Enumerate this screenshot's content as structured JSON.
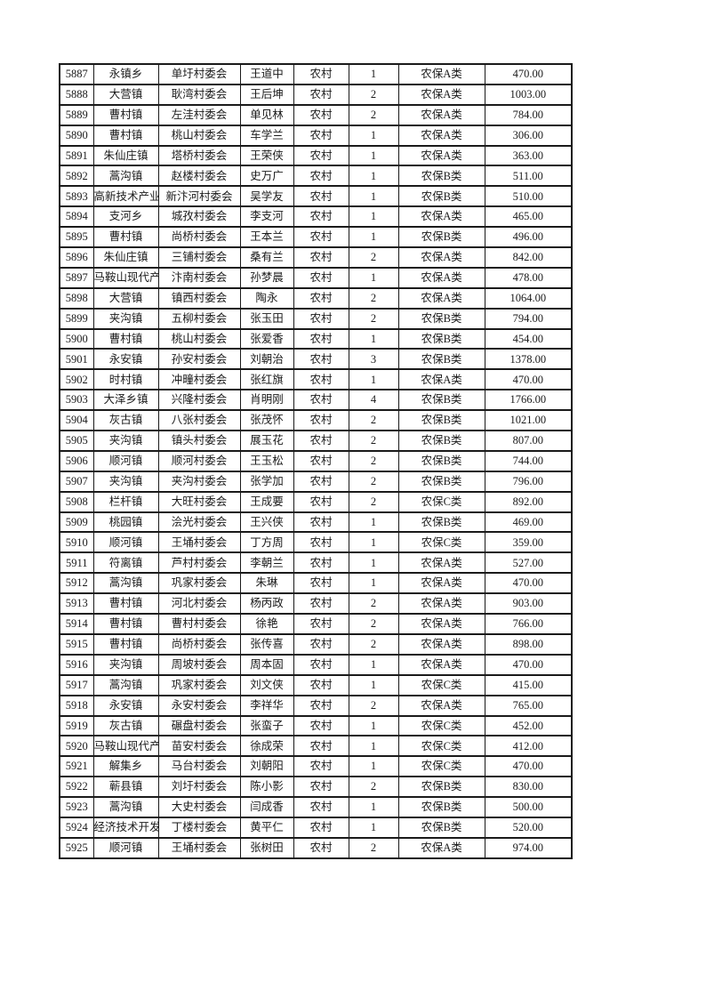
{
  "page": {
    "background_color": "#ffffff",
    "text_color": "#1a1a1a",
    "border_color": "#1a1a1a"
  },
  "table": {
    "column_names": [
      "serial-no",
      "town",
      "village-committee",
      "person-name",
      "residence-type",
      "person-count",
      "insurance-category",
      "amount"
    ],
    "rows": [
      [
        "5887",
        "永镇乡",
        "单圩村委会",
        "王道中",
        "农村",
        "1",
        "农保A类",
        "470.00"
      ],
      [
        "5888",
        "大营镇",
        "耿湾村委会",
        "王后坤",
        "农村",
        "2",
        "农保A类",
        "1003.00"
      ],
      [
        "5889",
        "曹村镇",
        "左洼村委会",
        "单见林",
        "农村",
        "2",
        "农保A类",
        "784.00"
      ],
      [
        "5890",
        "曹村镇",
        "桃山村委会",
        "车学兰",
        "农村",
        "1",
        "农保A类",
        "306.00"
      ],
      [
        "5891",
        "朱仙庄镇",
        "塔桥村委会",
        "王荣侠",
        "农村",
        "1",
        "农保A类",
        "363.00"
      ],
      [
        "5892",
        "蒿沟镇",
        "赵楼村委会",
        "史万广",
        "农村",
        "1",
        "农保B类",
        "511.00"
      ],
      [
        "5893",
        "高新技术产业开发区",
        "新汴河村委会",
        "吴学友",
        "农村",
        "1",
        "农保B类",
        "510.00"
      ],
      [
        "5894",
        "支河乡",
        "城孜村委会",
        "李支河",
        "农村",
        "1",
        "农保A类",
        "465.00"
      ],
      [
        "5895",
        "曹村镇",
        "尚桥村委会",
        "王本兰",
        "农村",
        "1",
        "农保B类",
        "496.00"
      ],
      [
        "5896",
        "朱仙庄镇",
        "三铺村委会",
        "桑有兰",
        "农村",
        "2",
        "农保A类",
        "842.00"
      ],
      [
        "5897",
        "马鞍山现代产业园区",
        "汴南村委会",
        "孙梦晨",
        "农村",
        "1",
        "农保A类",
        "478.00"
      ],
      [
        "5898",
        "大营镇",
        "镇西村委会",
        "陶永",
        "农村",
        "2",
        "农保A类",
        "1064.00"
      ],
      [
        "5899",
        "夹沟镇",
        "五柳村委会",
        "张玉田",
        "农村",
        "2",
        "农保B类",
        "794.00"
      ],
      [
        "5900",
        "曹村镇",
        "桃山村委会",
        "张爱香",
        "农村",
        "1",
        "农保B类",
        "454.00"
      ],
      [
        "5901",
        "永安镇",
        "孙安村委会",
        "刘朝治",
        "农村",
        "3",
        "农保B类",
        "1378.00"
      ],
      [
        "5902",
        "时村镇",
        "冲疃村委会",
        "张红旗",
        "农村",
        "1",
        "农保A类",
        "470.00"
      ],
      [
        "5903",
        "大泽乡镇",
        "兴隆村委会",
        "肖明刚",
        "农村",
        "4",
        "农保B类",
        "1766.00"
      ],
      [
        "5904",
        "灰古镇",
        "八张村委会",
        "张茂怀",
        "农村",
        "2",
        "农保B类",
        "1021.00"
      ],
      [
        "5905",
        "夹沟镇",
        "镇头村委会",
        "展玉花",
        "农村",
        "2",
        "农保B类",
        "807.00"
      ],
      [
        "5906",
        "顺河镇",
        "顺河村委会",
        "王玉松",
        "农村",
        "2",
        "农保B类",
        "744.00"
      ],
      [
        "5907",
        "夹沟镇",
        "夹沟村委会",
        "张学加",
        "农村",
        "2",
        "农保B类",
        "796.00"
      ],
      [
        "5908",
        "栏杆镇",
        "大旺村委会",
        "王成要",
        "农村",
        "2",
        "农保C类",
        "892.00"
      ],
      [
        "5909",
        "桃园镇",
        "浍光村委会",
        "王兴侠",
        "农村",
        "1",
        "农保B类",
        "469.00"
      ],
      [
        "5910",
        "顺河镇",
        "王埇村委会",
        "丁方周",
        "农村",
        "1",
        "农保C类",
        "359.00"
      ],
      [
        "5911",
        "符离镇",
        "芦村村委会",
        "李朝兰",
        "农村",
        "1",
        "农保A类",
        "527.00"
      ],
      [
        "5912",
        "蒿沟镇",
        "巩家村委会",
        "朱琳",
        "农村",
        "1",
        "农保A类",
        "470.00"
      ],
      [
        "5913",
        "曹村镇",
        "河北村委会",
        "杨丙政",
        "农村",
        "2",
        "农保A类",
        "903.00"
      ],
      [
        "5914",
        "曹村镇",
        "曹村村委会",
        "徐艳",
        "农村",
        "2",
        "农保A类",
        "766.00"
      ],
      [
        "5915",
        "曹村镇",
        "尚桥村委会",
        "张传喜",
        "农村",
        "2",
        "农保A类",
        "898.00"
      ],
      [
        "5916",
        "夹沟镇",
        "周坡村委会",
        "周本固",
        "农村",
        "1",
        "农保A类",
        "470.00"
      ],
      [
        "5917",
        "蒿沟镇",
        "巩家村委会",
        "刘文侠",
        "农村",
        "1",
        "农保C类",
        "415.00"
      ],
      [
        "5918",
        "永安镇",
        "永安村委会",
        "李祥华",
        "农村",
        "2",
        "农保A类",
        "765.00"
      ],
      [
        "5919",
        "灰古镇",
        "碾盘村委会",
        "张蛮子",
        "农村",
        "1",
        "农保C类",
        "452.00"
      ],
      [
        "5920",
        "马鞍山现代产业园区",
        "苗安村委会",
        "徐成荣",
        "农村",
        "1",
        "农保C类",
        "412.00"
      ],
      [
        "5921",
        "解集乡",
        "马台村委会",
        "刘朝阳",
        "农村",
        "1",
        "农保C类",
        "470.00"
      ],
      [
        "5922",
        "蕲县镇",
        "刘圩村委会",
        "陈小影",
        "农村",
        "2",
        "农保B类",
        "830.00"
      ],
      [
        "5923",
        "蒿沟镇",
        "大史村委会",
        "闫成香",
        "农村",
        "1",
        "农保B类",
        "500.00"
      ],
      [
        "5924",
        "经济技术开发区北杨寨乡",
        "丁楼村委会",
        "黄平仁",
        "农村",
        "1",
        "农保B类",
        "520.00"
      ],
      [
        "5925",
        "顺河镇",
        "王埇村委会",
        "张树田",
        "农村",
        "2",
        "农保A类",
        "974.00"
      ]
    ]
  }
}
